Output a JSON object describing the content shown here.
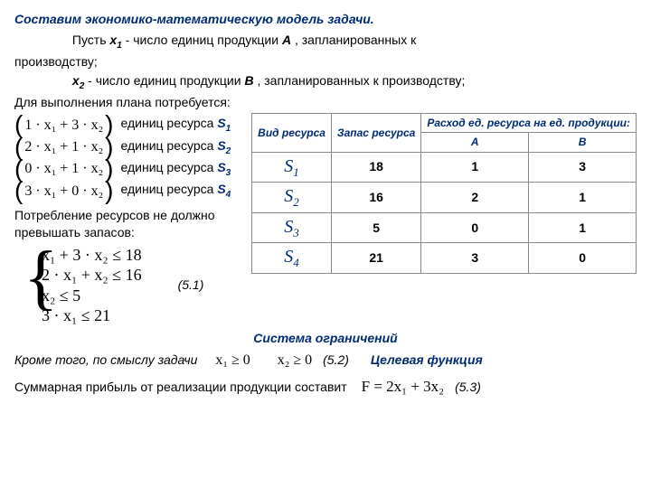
{
  "title": "Составим экономико-математическую модель задачи.",
  "p1a": "Пусть ",
  "x1": "x",
  "x1s": "1",
  "p1b": " - число единиц продукции ",
  "A": "А",
  "p1c": " , запланированных к",
  "p1d": "производству;",
  "x2": "x",
  "x2s": "2",
  "p2b": "- число единиц продукции ",
  "B": "В",
  "p2c": " , запланированных к производству;",
  "p3": "Для выполнения плана потребуется:",
  "resources": [
    {
      "e": "1 · x₁ + 3 · x₂",
      "lbl": "единиц ресурса",
      "s": "S",
      "i": "1"
    },
    {
      "e": "2 · x₁ + 1 · x₂",
      "lbl": "единиц ресурса",
      "s": "S",
      "i": "2"
    },
    {
      "e": "0 · x₁ + 1 · x₂",
      "lbl": "единиц ресурса",
      "s": "S",
      "i": "3"
    },
    {
      "e": "3 · x₁ + 0 · x₂",
      "lbl": "единиц ресурса",
      "s": "S",
      "i": "4"
    }
  ],
  "table": {
    "h1": "Вид ресурса",
    "h2": "Запас ресурса",
    "h3": "Расход ед. ресурса на ед. продукции:",
    "A": "А",
    "B": "В",
    "rows": [
      {
        "s": "S",
        "i": "1",
        "stock": "18",
        "a": "1",
        "b": "3"
      },
      {
        "s": "S",
        "i": "2",
        "stock": "16",
        "a": "2",
        "b": "1"
      },
      {
        "s": "S",
        "i": "3",
        "stock": "5",
        "a": "0",
        "b": "1"
      },
      {
        "s": "S",
        "i": "4",
        "stock": "21",
        "a": "3",
        "b": "0"
      }
    ]
  },
  "consume": "Потребление  ресурсов не должно превышать запасов:",
  "constraints": [
    "x₁ + 3 · x₂ ≤ 18",
    "2 · x₁ + x₂ ≤ 16",
    "x₂ ≤ 5",
    "3 · x₁        ≤ 21"
  ],
  "eq51": "(5.1)",
  "sys": "Система ограничений",
  "sense": "Кроме того, по смыслу задачи",
  "nn1": "x₁ ≥ 0",
  "nn2": "x₂ ≥ 0",
  "eq52": "(5.2)",
  "goal": "Целевая функция",
  "profit": "Суммарная прибыль от реализации продукции    составит",
  "F": "F = 2x₁ + 3x₂",
  "eq53": "(5.3)"
}
